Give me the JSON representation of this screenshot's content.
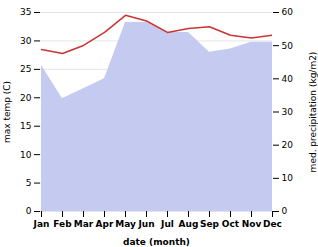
{
  "chart_data": {
    "type": "line",
    "categories": [
      "Jan",
      "Feb",
      "Mar",
      "Apr",
      "May",
      "Jun",
      "Jul",
      "Aug",
      "Sep",
      "Oct",
      "Nov",
      "Dec"
    ],
    "series": [
      {
        "type": "area",
        "axis": "y2",
        "color": "#c5caf0",
        "values": [
          44.0,
          34.0,
          37.0,
          40.0,
          57.0,
          57.0,
          54.0,
          54.0,
          48.0,
          49.0,
          51.0,
          51.0
        ]
      },
      {
        "type": "line",
        "color": "#cc3333",
        "values": [
          28.5,
          27.8,
          29.2,
          31.5,
          34.5,
          33.5,
          31.5,
          32.2,
          32.5,
          31.0,
          30.5,
          31.0
        ]
      }
    ],
    "xlabel": "date (month)",
    "ylabel": "max temp (C)",
    "y2label": "med. precipitation (kg/m2)",
    "ylim": [
      0,
      35
    ],
    "yticks": [
      0,
      5,
      10,
      15,
      20,
      25,
      30,
      35
    ],
    "y2lim": [
      0,
      60
    ],
    "y2ticks": [
      0,
      10,
      20,
      30,
      40,
      50,
      60
    ],
    "grid": true
  }
}
